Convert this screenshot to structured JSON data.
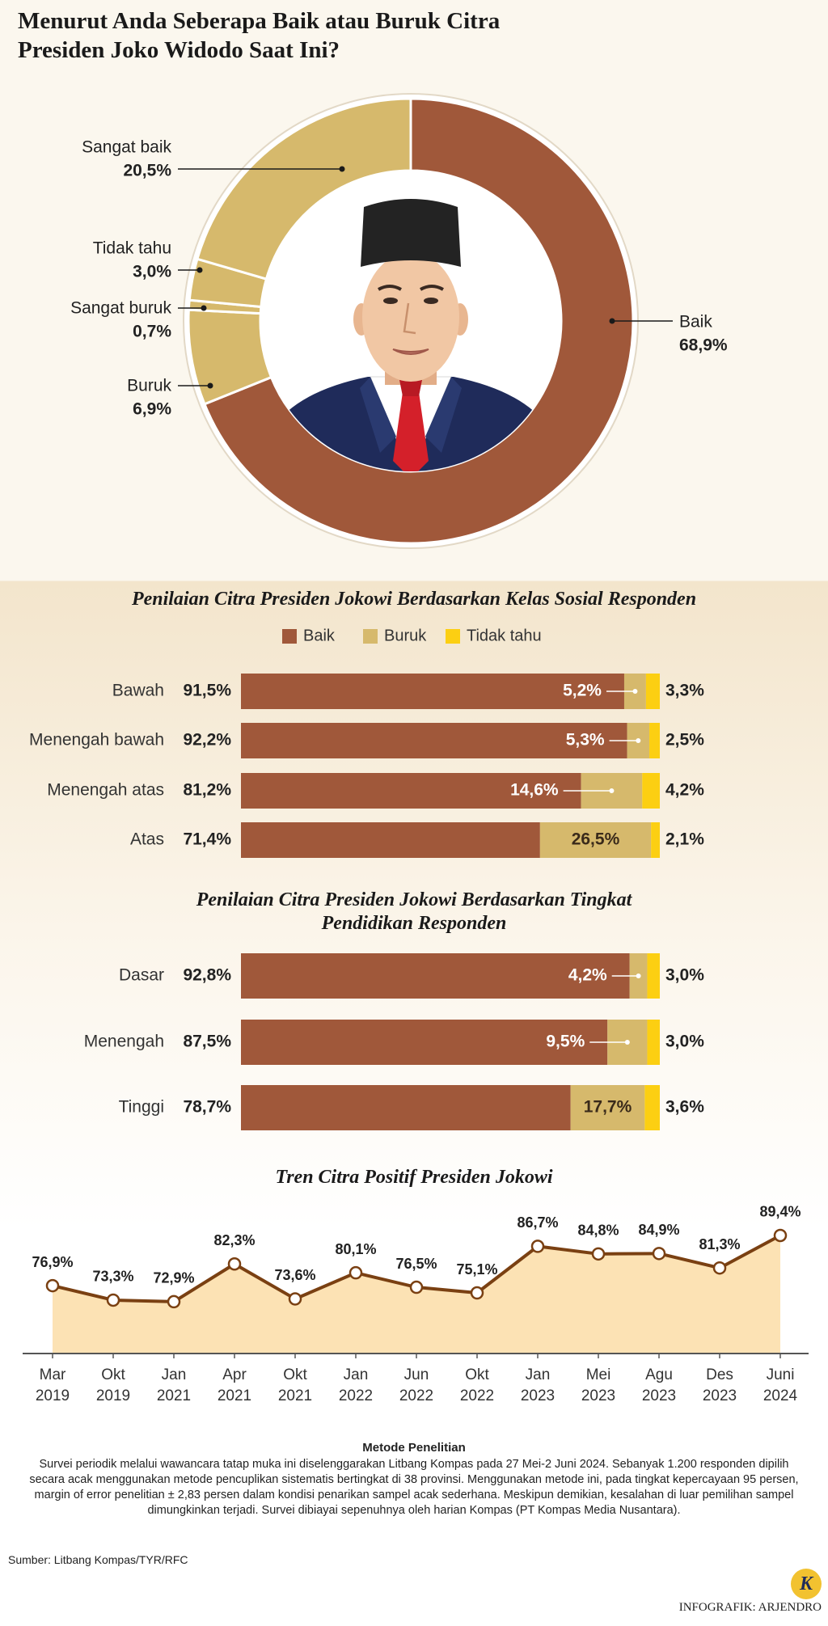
{
  "chart_data": [
    {
      "type": "donut",
      "title": "Menurut Anda Seberapa Baik atau Buruk Citra Presiden Joko Widodo Saat Ini?",
      "categories": [
        "Baik",
        "Buruk",
        "Sangat buruk",
        "Tidak tahu",
        "Sangat baik"
      ],
      "values": [
        68.9,
        6.9,
        0.7,
        3.0,
        20.5
      ],
      "value_labels": [
        "68,9%",
        "6,9%",
        "0,7%",
        "3,0%",
        "20,5%"
      ],
      "colors": [
        "#a0583a",
        "#d6b96c",
        "#d6b96c",
        "#d6b96c",
        "#d6b96c"
      ]
    },
    {
      "type": "stacked-barh",
      "title": "Penilaian Citra Presiden Jokowi Berdasarkan Kelas Sosial Responden",
      "categories": [
        "Bawah",
        "Menengah bawah",
        "Menengah atas",
        "Atas"
      ],
      "series": [
        {
          "name": "Baik",
          "color": "#a0583a",
          "values": [
            91.5,
            92.2,
            81.2,
            71.4
          ],
          "value_labels": [
            "91,5%",
            "92,2%",
            "81,2%",
            "71,4%"
          ]
        },
        {
          "name": "Buruk",
          "color": "#d6b96c",
          "values": [
            5.2,
            5.3,
            14.6,
            26.5
          ],
          "value_labels": [
            "5,2%",
            "5,3%",
            "14,6%",
            "26,5%"
          ]
        },
        {
          "name": "Tidak tahu",
          "color": "#fccf12",
          "values": [
            3.3,
            2.5,
            4.2,
            2.1
          ],
          "value_labels": [
            "3,3%",
            "2,5%",
            "4,2%",
            "2,1%"
          ]
        }
      ]
    },
    {
      "type": "stacked-barh",
      "title": "Penilaian Citra Presiden Jokowi Berdasarkan Tingkat Pendidikan Responden",
      "categories": [
        "Dasar",
        "Menengah",
        "Tinggi"
      ],
      "series": [
        {
          "color": "#a0583a",
          "values": [
            92.8,
            87.5,
            78.7
          ],
          "value_labels": [
            "92,8%",
            "87,5%",
            "78,7%"
          ]
        },
        {
          "color": "#d6b96c",
          "values": [
            4.2,
            9.5,
            17.7
          ],
          "value_labels": [
            "4,2%",
            "9,5%",
            "17,7%"
          ]
        },
        {
          "color": "#fccf12",
          "values": [
            3.0,
            3.0,
            3.6
          ],
          "value_labels": [
            "3,0%",
            "3,0%",
            "3,6%"
          ]
        }
      ]
    },
    {
      "type": "area",
      "title": "Tren Citra Positif Presiden Jokowi",
      "categories": [
        "Mar 2019",
        "Okt 2019",
        "Jan 2021",
        "Apr 2021",
        "Okt 2021",
        "Jan 2022",
        "Jun 2022",
        "Okt 2022",
        "Jan 2023",
        "Mei 2023",
        "Agu 2023",
        "Des 2023",
        "Juni 2024"
      ],
      "values": [
        76.9,
        73.3,
        72.9,
        82.3,
        73.6,
        80.1,
        76.5,
        75.1,
        86.7,
        84.8,
        84.9,
        81.3,
        89.4
      ],
      "value_labels": [
        "76,9%",
        "73,3%",
        "72,9%",
        "82,3%",
        "73,6%",
        "80,1%",
        "76,5%",
        "75,1%",
        "86,7%",
        "84,8%",
        "84,9%",
        "81,3%",
        "89,4%"
      ],
      "ylim": [
        60,
        90
      ],
      "color": "#7a4012",
      "fill": "#fce2b4"
    }
  ],
  "method": {
    "heading": "Metode Penelitian",
    "text": "Survei periodik melalui wawancara tatap muka ini diselenggarakan Litbang Kompas pada 27 Mei-2 Juni 2024. Sebanyak 1.200 responden dipilih secara acak menggunakan metode pencuplikan sistematis bertingkat di 38 provinsi. Menggunakan metode ini, pada tingkat kepercayaan 95 persen, margin of error penelitian ± 2,83 persen dalam kondisi penarikan sampel acak sederhana. Meskipun demikian, kesalahan di luar pemilihan sampel dimungkinkan terjadi. Survei dibiayai sepenuhnya oleh harian Kompas (PT Kompas Media Nusantara)."
  },
  "source": "Sumber: Litbang Kompas/TYR/RFC",
  "credit": "INFOGRAFIK: ARJENDRO",
  "logo": "K"
}
